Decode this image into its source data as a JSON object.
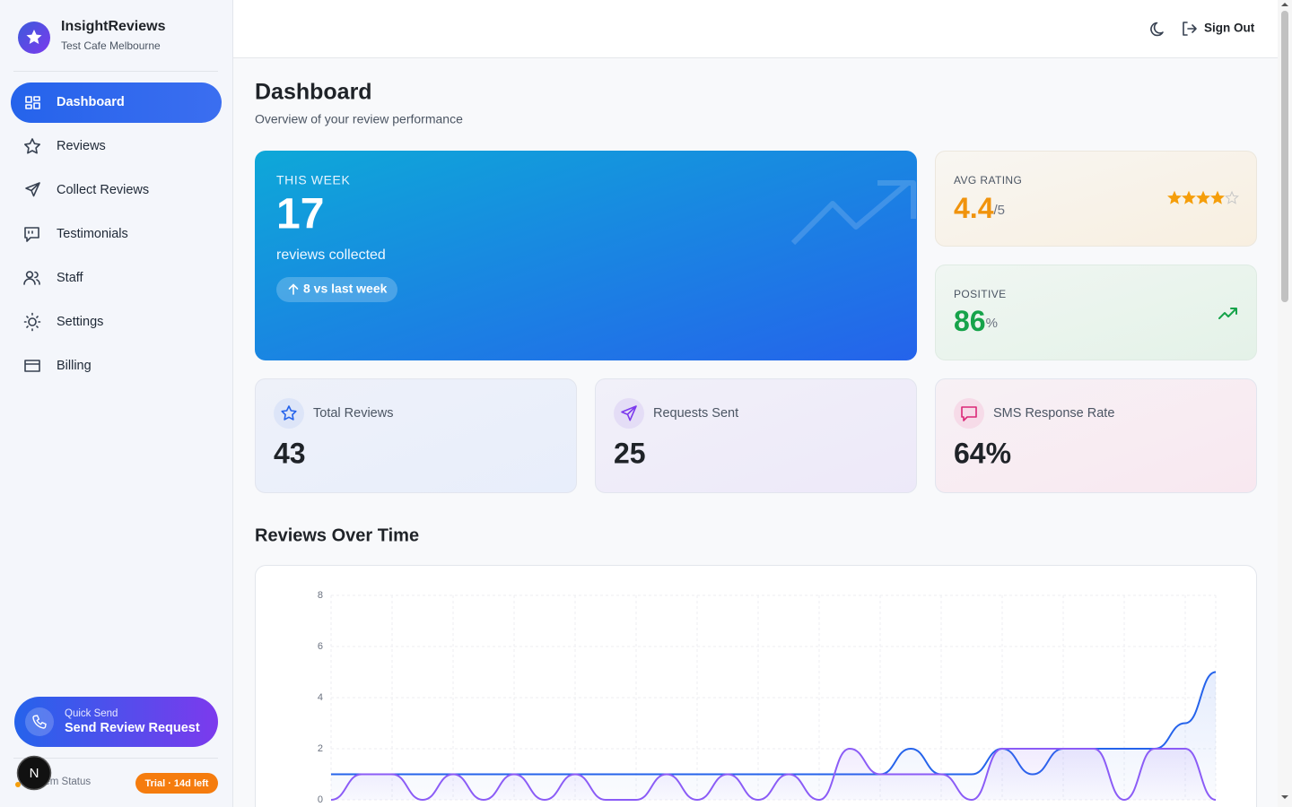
{
  "sidebar": {
    "brand": "InsightReviews",
    "business": "Test Cafe Melbourne",
    "nav": [
      "Dashboard",
      "Reviews",
      "Collect Reviews",
      "Testimonials",
      "Staff",
      "Settings",
      "Billing"
    ],
    "quick_send": {
      "label": "Quick Send",
      "action": "Send Review Request"
    },
    "status": "System Status",
    "trial": "Trial · 14d left",
    "avatar": "N"
  },
  "header": {
    "sign_out": "Sign Out"
  },
  "page": {
    "title": "Dashboard",
    "subtitle": "Overview of your review performance"
  },
  "this_week": {
    "label": "THIS WEEK",
    "value": 17,
    "caption": "reviews collected",
    "change": "8 vs last week"
  },
  "avg_rating": {
    "label": "AVG RATING",
    "value": 4.4,
    "suffix": "/5"
  },
  "positive": {
    "label": "POSITIVE",
    "value": 86,
    "suffix": "%"
  },
  "stats": [
    {
      "label": "Total Reviews",
      "value": "43"
    },
    {
      "label": "Requests Sent",
      "value": "25"
    },
    {
      "label": "SMS Response Rate",
      "value": "64%"
    }
  ],
  "chart_data": {
    "type": "line",
    "title": "Reviews Over Time",
    "categories": [
      null,
      null,
      null,
      null,
      null,
      null,
      null,
      null,
      null,
      null,
      null,
      null,
      null,
      null,
      null,
      null,
      null,
      null,
      null,
      null,
      null,
      null,
      null,
      null,
      null,
      null,
      null,
      null,
      null,
      null
    ],
    "series": [
      {
        "color": "#2563eb",
        "values": [
          1,
          1,
          1,
          1,
          1,
          1,
          1,
          1,
          1,
          1,
          1,
          1,
          1,
          1,
          1,
          1,
          1,
          1,
          1,
          2,
          1,
          1,
          2,
          1,
          2,
          2,
          2,
          2,
          3,
          5
        ]
      },
      {
        "color": "#8b5cf6",
        "values": [
          0,
          1,
          1,
          0,
          1,
          0,
          1,
          0,
          1,
          0,
          0,
          1,
          0,
          1,
          0,
          1,
          0,
          2,
          1,
          1,
          1,
          0,
          2,
          2,
          2,
          2,
          0,
          2,
          2,
          0
        ]
      }
    ],
    "ylim": [
      0,
      8
    ],
    "yticks": [
      0,
      2,
      4,
      6,
      8
    ],
    "grid": true
  }
}
